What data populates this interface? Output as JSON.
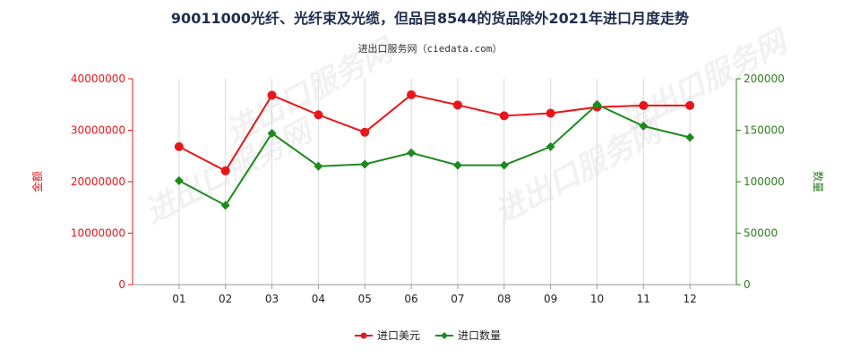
{
  "chart_data": {
    "type": "line",
    "title": "90011000光纤、光纤束及光缆，但品目8544的货品除外2021年进口月度走势",
    "subtitle": "进出口服务网（ciedata.com）",
    "categories": [
      "01",
      "02",
      "03",
      "04",
      "05",
      "06",
      "07",
      "08",
      "09",
      "10",
      "11",
      "12"
    ],
    "ylabel_left": "金额",
    "ylabel_right": "数量",
    "ylim_left": [
      0,
      40000000
    ],
    "ylim_right": [
      0,
      200000
    ],
    "yticks_left": [
      "0",
      "10000000",
      "20000000",
      "30000000",
      "40000000"
    ],
    "yticks_right": [
      "0",
      "50000",
      "100000",
      "150000",
      "200000"
    ],
    "grid": "vertical",
    "legend_position": "bottom",
    "watermark": "进出口服务网",
    "series": [
      {
        "name": "进口美元",
        "axis": "left",
        "color": "#e8161a",
        "values": [
          26800000,
          22100000,
          36800000,
          33000000,
          29600000,
          36900000,
          34900000,
          32800000,
          33300000,
          34500000,
          34800000,
          34800000
        ]
      },
      {
        "name": "进口数量",
        "axis": "right",
        "color": "#1e8a1e",
        "values": [
          101000,
          77000,
          147000,
          115000,
          117000,
          128000,
          116000,
          116000,
          134000,
          175000,
          154000,
          143000
        ]
      }
    ]
  }
}
